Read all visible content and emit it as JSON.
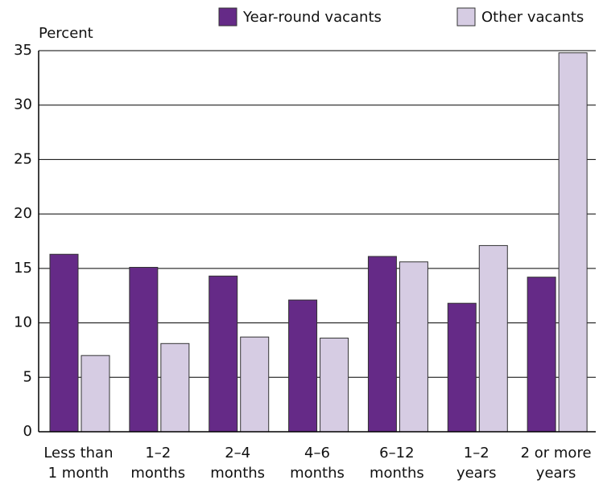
{
  "chart_data": {
    "type": "bar",
    "y_label": "Percent",
    "categories": [
      "Less than\n1 month",
      "1–2\nmonths",
      "2–4\nmonths",
      "4–6\nmonths",
      "6–12\nmonths",
      "1–2\nyears",
      "2 or more\nyears"
    ],
    "series": [
      {
        "name": "Year-round vacants",
        "color": "#652a87",
        "values": [
          16.3,
          15.1,
          14.3,
          12.1,
          16.1,
          11.8,
          14.2
        ]
      },
      {
        "name": "Other vacants",
        "color": "#d6cce3",
        "values": [
          7.0,
          8.1,
          8.7,
          8.6,
          15.6,
          17.1,
          34.8
        ]
      }
    ],
    "ylim": [
      0,
      35
    ],
    "yticks": [
      0,
      5,
      10,
      15,
      20,
      25,
      30,
      35
    ],
    "grid": true
  }
}
